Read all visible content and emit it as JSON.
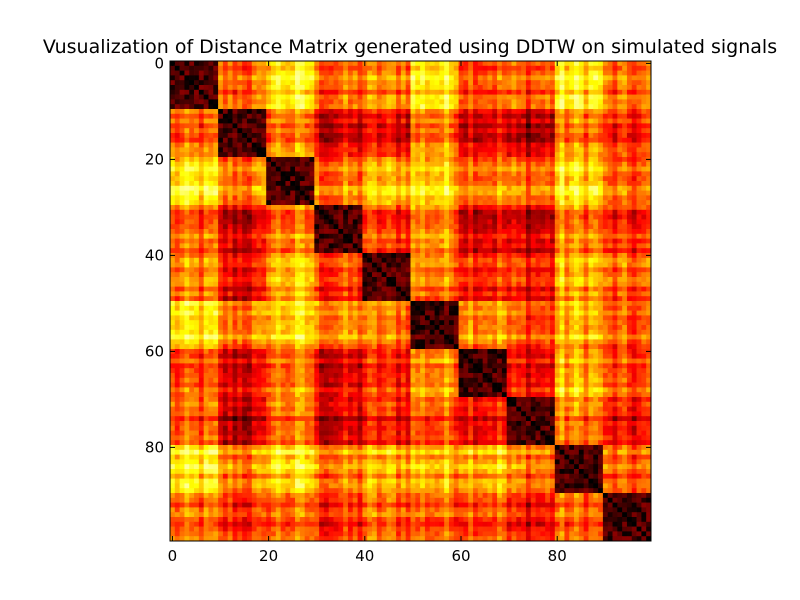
{
  "chart_data": {
    "type": "heatmap",
    "title": "Vusualization of Distance Matrix generated using DDTW on simulated signals",
    "xlabel": "",
    "ylabel": "",
    "n": 100,
    "colormap": "hot",
    "colors": {
      "low": "#000000",
      "mid1": "#cc0000",
      "mid2": "#ff6600",
      "high": "#ffff33"
    },
    "xlim": [
      0,
      99
    ],
    "ylim": [
      0,
      99
    ],
    "x_ticks": [
      0,
      20,
      40,
      60,
      80
    ],
    "y_ticks": [
      0,
      20,
      40,
      60,
      80
    ],
    "cluster_boundaries": [
      0,
      10,
      20,
      30,
      40,
      50,
      60,
      70,
      80,
      90,
      100
    ],
    "cluster_levels": [
      [
        0.0,
        0.55,
        0.8,
        0.55,
        0.6,
        0.8,
        0.55,
        0.55,
        0.8,
        0.55
      ],
      [
        0.55,
        0.0,
        0.62,
        0.35,
        0.4,
        0.62,
        0.4,
        0.3,
        0.62,
        0.45
      ],
      [
        0.8,
        0.62,
        0.0,
        0.6,
        0.72,
        0.78,
        0.65,
        0.6,
        0.8,
        0.55
      ],
      [
        0.55,
        0.35,
        0.6,
        0.0,
        0.5,
        0.65,
        0.4,
        0.35,
        0.62,
        0.45
      ],
      [
        0.6,
        0.4,
        0.72,
        0.5,
        0.0,
        0.62,
        0.5,
        0.45,
        0.7,
        0.55
      ],
      [
        0.8,
        0.62,
        0.78,
        0.65,
        0.62,
        0.0,
        0.7,
        0.55,
        0.72,
        0.55
      ],
      [
        0.55,
        0.4,
        0.65,
        0.4,
        0.5,
        0.7,
        0.0,
        0.45,
        0.75,
        0.55
      ],
      [
        0.55,
        0.3,
        0.6,
        0.35,
        0.45,
        0.55,
        0.45,
        0.0,
        0.62,
        0.4
      ],
      [
        0.8,
        0.62,
        0.8,
        0.62,
        0.7,
        0.72,
        0.75,
        0.62,
        0.0,
        0.55
      ],
      [
        0.55,
        0.45,
        0.55,
        0.45,
        0.55,
        0.55,
        0.55,
        0.4,
        0.55,
        0.0
      ]
    ],
    "within_cluster_level": 0.12
  }
}
